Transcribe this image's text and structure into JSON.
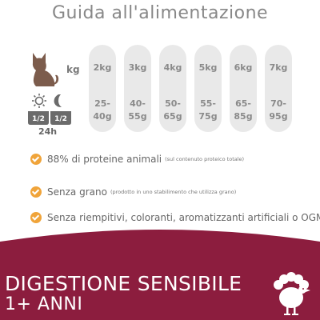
{
  "title": "Guida all'alimentazione",
  "feeding": {
    "weight_unit": "kg",
    "period": "24h",
    "fraction_left": "1/2",
    "fraction_right": "1/2",
    "columns": [
      {
        "weight": "2kg",
        "g1": "25-",
        "g2": "40g"
      },
      {
        "weight": "3kg",
        "g1": "40-",
        "g2": "55g"
      },
      {
        "weight": "4kg",
        "g1": "50-",
        "g2": "65g"
      },
      {
        "weight": "5kg",
        "g1": "55-",
        "g2": "75g"
      },
      {
        "weight": "6kg",
        "g1": "65-",
        "g2": "85g"
      },
      {
        "weight": "7kg",
        "g1": "70-",
        "g2": "95g"
      }
    ]
  },
  "features": [
    {
      "text": "88% di proteine animali",
      "note": "(sul contenuto proteico totale)"
    },
    {
      "text": "Senza grano",
      "note": "(prodotto in uno stabilimento che utilizza grano)"
    },
    {
      "text": "Senza riempitivi, coloranti, aromatizzanti artificiali o OGM",
      "note": ""
    }
  ],
  "banner": {
    "line1": "DIGESTIONE SENSIBILE",
    "line2": "1+ ANNI"
  },
  "colors": {
    "accent": "#f0a43a",
    "banner": "#8c1d3e",
    "column_bg": "#e9e9e9",
    "cat": "#7c5c4c"
  },
  "icons": [
    "cat-icon",
    "sun-moon-icon",
    "check-icon",
    "turkey-icon"
  ]
}
